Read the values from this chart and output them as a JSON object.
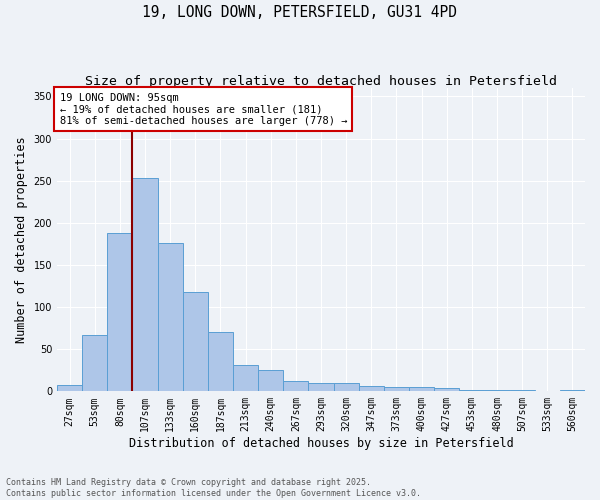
{
  "title": "19, LONG DOWN, PETERSFIELD, GU31 4PD",
  "subtitle": "Size of property relative to detached houses in Petersfield",
  "xlabel": "Distribution of detached houses by size in Petersfield",
  "ylabel": "Number of detached properties",
  "footnote1": "Contains HM Land Registry data © Crown copyright and database right 2025.",
  "footnote2": "Contains public sector information licensed under the Open Government Licence v3.0.",
  "annotation_title": "19 LONG DOWN: 95sqm",
  "annotation_line1": "← 19% of detached houses are smaller (181)",
  "annotation_line2": "81% of semi-detached houses are larger (778) →",
  "categories": [
    "27sqm",
    "53sqm",
    "80sqm",
    "107sqm",
    "133sqm",
    "160sqm",
    "187sqm",
    "213sqm",
    "240sqm",
    "267sqm",
    "293sqm",
    "320sqm",
    "347sqm",
    "373sqm",
    "400sqm",
    "427sqm",
    "453sqm",
    "480sqm",
    "507sqm",
    "533sqm",
    "560sqm"
  ],
  "values": [
    8,
    67,
    188,
    253,
    176,
    118,
    70,
    31,
    25,
    12,
    10,
    10,
    6,
    5,
    5,
    4,
    2,
    1,
    1,
    0,
    2
  ],
  "bar_color": "#aec6e8",
  "bar_edge_color": "#5a9fd4",
  "line_color": "#8b0000",
  "annotation_box_color": "#cc0000",
  "background_color": "#eef2f7",
  "grid_color": "#ffffff",
  "ylim": [
    0,
    360
  ],
  "yticks": [
    0,
    50,
    100,
    150,
    200,
    250,
    300,
    350
  ],
  "property_bin_index": 2,
  "title_fontsize": 10.5,
  "subtitle_fontsize": 9.5,
  "axis_label_fontsize": 8.5,
  "tick_fontsize": 7,
  "annotation_fontsize": 7.5,
  "footnote_fontsize": 6,
  "footnote_color": "#555555"
}
